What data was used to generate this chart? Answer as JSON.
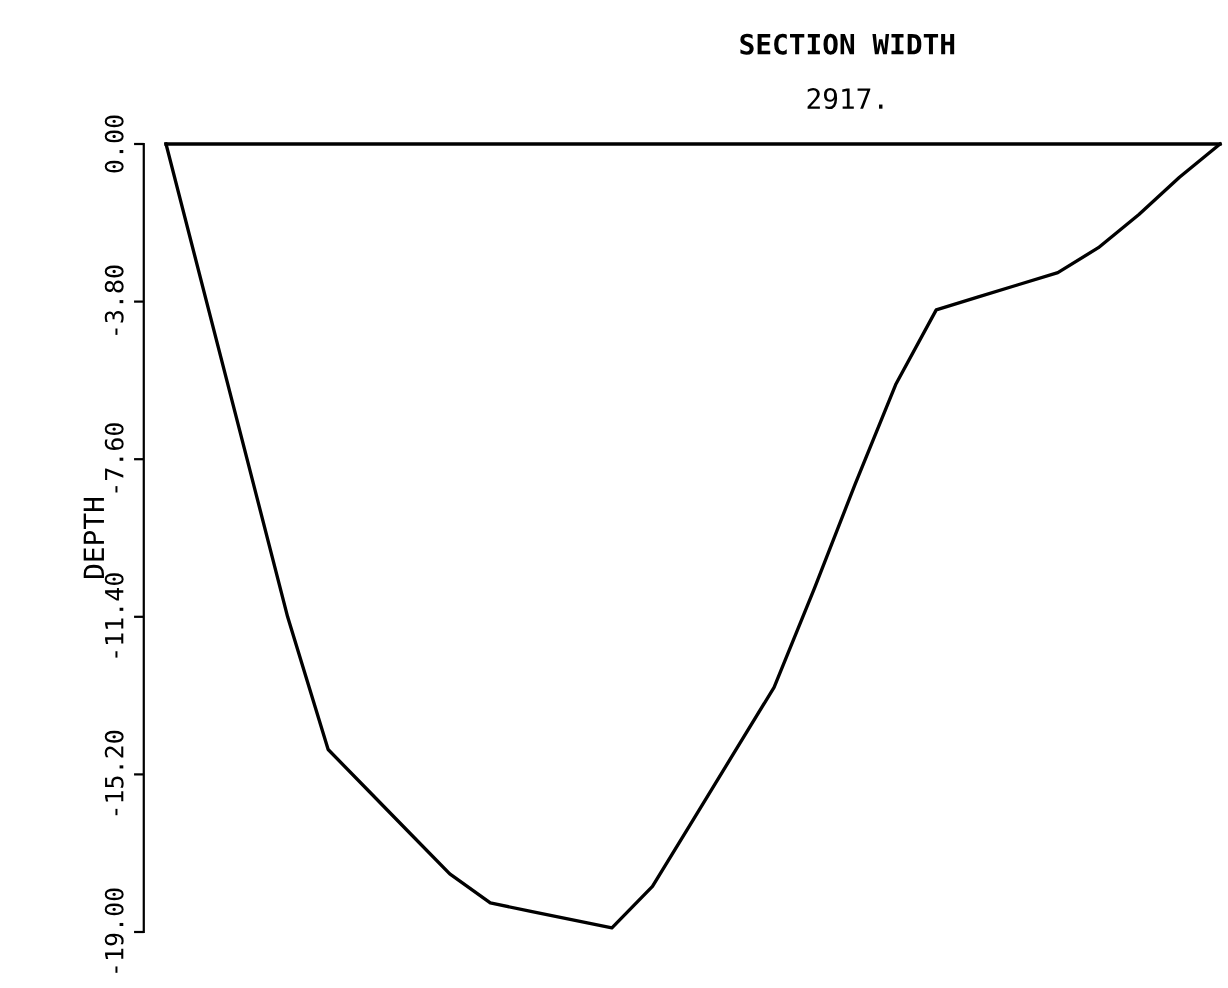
{
  "chart_data": {
    "type": "line",
    "title": "SECTION WIDTH",
    "subtitle": "2917.",
    "ylabel": "DEPTH",
    "categories": [
      null,
      null,
      null,
      null,
      null,
      null,
      null,
      null,
      null,
      null,
      null,
      null,
      null,
      null,
      null,
      null,
      null,
      null,
      null,
      null,
      null,
      null,
      null,
      null,
      null,
      null,
      null
    ],
    "series": [
      {
        "color": "#000000",
        "values": [
          0,
          -3.8,
          -7.6,
          -11.4,
          -14.6,
          -15.6,
          -16.6,
          -17.6,
          -18.3,
          -18.5,
          -18.7,
          -18.9,
          -17.9,
          -16.3,
          -14.7,
          -13.1,
          -10.7,
          -8.2,
          -5.8,
          -4.0,
          -3.7,
          -3.4,
          -3.1,
          -2.5,
          -1.7,
          -0.8,
          0
        ]
      }
    ],
    "ref_lines": [
      {
        "axis": "y",
        "value": 0.0,
        "color": "#000000"
      }
    ],
    "ylim": [
      -19.0,
      0.0
    ],
    "yticks": [
      {
        "value": 0.0,
        "label": "0.00"
      },
      {
        "value": -3.8,
        "label": "-3.80"
      },
      {
        "value": -7.6,
        "label": "-7.60"
      },
      {
        "value": -11.4,
        "label": "-11.40"
      },
      {
        "value": -15.2,
        "label": "-15.20"
      },
      {
        "value": -19.0,
        "label": "-19.00"
      }
    ],
    "tick_labels": "y",
    "grid": false,
    "legend": false,
    "marker": "none",
    "line_style": "solid"
  }
}
